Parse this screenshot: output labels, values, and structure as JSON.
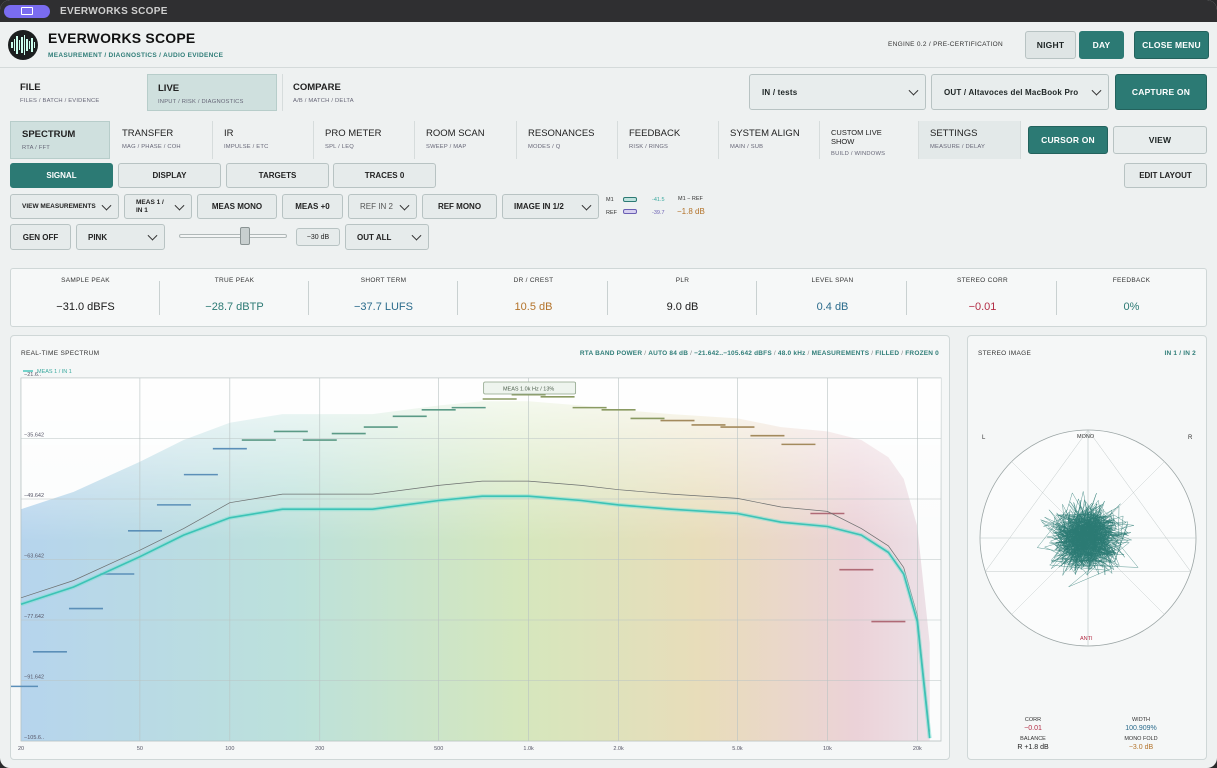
{
  "titlebar": {
    "title": "EVERWORKS SCOPE"
  },
  "header": {
    "title": "EVERWORKS SCOPE",
    "subtitle": "MEASUREMENT / DIAGNOSTICS / AUDIO EVIDENCE",
    "engine": "ENGINE 0.2  /  PRE-CERTIFICATION",
    "night_label": "NIGHT",
    "day_label": "DAY",
    "close_menu_label": "CLOSE MENU"
  },
  "nav_tabs": [
    {
      "title": "FILE",
      "sub": "FILES / BATCH / EVIDENCE"
    },
    {
      "title": "LIVE",
      "sub": "INPUT / RISK / DIAGNOSTICS"
    },
    {
      "title": "COMPARE",
      "sub": "A/B / MATCH / DELTA"
    }
  ],
  "io": {
    "input": "IN / tests",
    "output": "OUT / Altavoces del MacBook Pro",
    "capture_label": "CAPTURE ON"
  },
  "mode_tabs": [
    {
      "title": "SPECTRUM",
      "sub": "RTA / FFT"
    },
    {
      "title": "TRANSFER",
      "sub": "MAG / PHASE / COH"
    },
    {
      "title": "IR",
      "sub": "IMPULSE / ETC"
    },
    {
      "title": "PRO METER",
      "sub": "SPL / LEQ"
    },
    {
      "title": "ROOM SCAN",
      "sub": "SWEEP / MAP"
    },
    {
      "title": "RESONANCES",
      "sub": "MODES / Q"
    },
    {
      "title": "FEEDBACK",
      "sub": "RISK / RINGS"
    },
    {
      "title": "SYSTEM ALIGN",
      "sub": "MAIN / SUB"
    },
    {
      "title": "CUSTOM LIVE SHOW",
      "sub": "BUILD / WINDOWS"
    },
    {
      "title": "SETTINGS",
      "sub": "MEASURE / DELAY"
    }
  ],
  "cursor_label": "CURSOR ON",
  "view_label": "VIEW",
  "subtabs": [
    "SIGNAL",
    "DISPLAY",
    "TARGETS",
    "TRACES 0"
  ],
  "edit_layout_label": "EDIT LAYOUT",
  "controls": {
    "view_measurements": "VIEW MEASUREMENTS",
    "meas_select": "MEAS 1 / IN 1",
    "meas_mono": "MEAS MONO",
    "meas_offset": "MEAS +0",
    "ref_select": "REF IN 2",
    "ref_mono": "REF MONO",
    "image_select": "IMAGE IN 1/2",
    "m1_label": "M1",
    "ref_label": "REF",
    "m1_value": "-41.5",
    "ref_value": "-39.7",
    "m1_ref_label": "M1 − REF",
    "m1_ref_value": "−1.8 dB",
    "gen": "GEN OFF",
    "noise": "PINK",
    "gen_level": "−30 dB",
    "gen_level_fraction": 0.62,
    "out": "OUT ALL"
  },
  "metrics": [
    {
      "label": "SAMPLE PEAK",
      "value": "−31.0 dBFS",
      "color": "#1a1a1a"
    },
    {
      "label": "TRUE PEAK",
      "value": "−28.7 dBTP",
      "color": "#2c7a74"
    },
    {
      "label": "SHORT TERM",
      "value": "−37.7 LUFS",
      "color": "#2a6b8c"
    },
    {
      "label": "DR / CREST",
      "value": "10.5 dB",
      "color": "#b3732a"
    },
    {
      "label": "PLR",
      "value": "9.0 dB",
      "color": "#1a1a1a"
    },
    {
      "label": "LEVEL SPAN",
      "value": "0.4 dB",
      "color": "#2a6b8c"
    },
    {
      "label": "STEREO CORR",
      "value": "−0.01",
      "color": "#b32d45"
    },
    {
      "label": "FEEDBACK",
      "value": "0%",
      "color": "#2c7a74"
    }
  ],
  "spectrum": {
    "title": "REAL-TIME SPECTRUM",
    "info": [
      "RTA BAND POWER",
      "AUTO 84 dB",
      "−21.642..−105.642 dBFS",
      "48.0 kHz",
      "MEASUREMENTS",
      "FILLED",
      "FROZEN 0"
    ],
    "legend": "MEAS 1 / IN 1",
    "marker": "MEAS  1.0k Hz  /  13%",
    "y_labels": [
      "−21.6..",
      "−35.642",
      "−49.642",
      "−63.642",
      "−77.642",
      "−91.642",
      "−105.6.."
    ],
    "x_labels": [
      "20",
      "50",
      "100",
      "200",
      "500",
      "1.0k",
      "2.0k",
      "5.0k",
      "10k",
      "20k"
    ]
  },
  "chart_data": {
    "type": "line",
    "title": "REAL-TIME SPECTRUM",
    "xlabel": "",
    "ylabel": "",
    "x_scale": "log",
    "xlim": [
      20,
      24000
    ],
    "ylim": [
      -105.642,
      -21.642
    ],
    "series": [
      {
        "name": "MEAS 1 / IN 1",
        "x": [
          20,
          30,
          50,
          70,
          100,
          150,
          200,
          300,
          500,
          700,
          1000,
          1500,
          2000,
          3000,
          5000,
          7000,
          10000,
          13000,
          16000,
          18000,
          20000,
          21000,
          22000
        ],
        "values": [
          -74,
          -70,
          -63,
          -58,
          -54,
          -52,
          -52,
          -52,
          -50,
          -49,
          -49,
          -50,
          -51,
          -52,
          -53,
          -55,
          -56,
          -58,
          -62,
          -67,
          -78,
          -92,
          -105
        ]
      }
    ],
    "reference_bars": [
      {
        "x": 20,
        "y": -93
      },
      {
        "x": 25,
        "y": -85
      },
      {
        "x": 33,
        "y": -75
      },
      {
        "x": 42,
        "y": -67
      },
      {
        "x": 52,
        "y": -57
      },
      {
        "x": 65,
        "y": -51
      },
      {
        "x": 80,
        "y": -44
      },
      {
        "x": 100,
        "y": -38
      },
      {
        "x": 125,
        "y": -36
      },
      {
        "x": 160,
        "y": -34
      },
      {
        "x": 200,
        "y": -36
      },
      {
        "x": 250,
        "y": -34.5
      },
      {
        "x": 320,
        "y": -33
      },
      {
        "x": 400,
        "y": -30.5
      },
      {
        "x": 500,
        "y": -29
      },
      {
        "x": 630,
        "y": -28.5
      },
      {
        "x": 800,
        "y": -26.5
      },
      {
        "x": 1000,
        "y": -25.5
      },
      {
        "x": 1250,
        "y": -26
      },
      {
        "x": 1600,
        "y": -28.5
      },
      {
        "x": 2000,
        "y": -29
      },
      {
        "x": 2500,
        "y": -31
      },
      {
        "x": 3150,
        "y": -31.5
      },
      {
        "x": 4000,
        "y": -32.5
      },
      {
        "x": 5000,
        "y": -33
      },
      {
        "x": 6300,
        "y": -35
      },
      {
        "x": 8000,
        "y": -37
      },
      {
        "x": 10000,
        "y": -53
      },
      {
        "x": 12500,
        "y": -66
      },
      {
        "x": 16000,
        "y": -78
      }
    ]
  },
  "stereo": {
    "title": "STEREO IMAGE",
    "info": "IN 1 / IN 2",
    "l_label": "L",
    "mono_label": "MONO",
    "r_label": "R",
    "anti_label": "ANTI",
    "corr_label": "CORR",
    "corr_value": "−0.01",
    "width_label": "WIDTH",
    "width_value": "100.909%",
    "balance_label": "BALANCE",
    "balance_value": "R +1.8 dB",
    "mono_fold_label": "MONO FOLD",
    "mono_fold_value": "−3.0 dB"
  }
}
